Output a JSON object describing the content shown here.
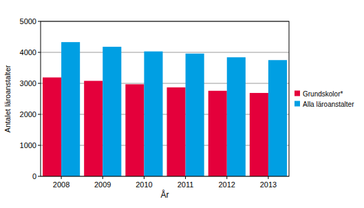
{
  "chart_data": {
    "type": "bar",
    "x_label": "År",
    "y_label": "Antalet läroanstalter",
    "categories": [
      "2008",
      "2009",
      "2010",
      "2011",
      "2012",
      "2013"
    ],
    "series": [
      {
        "name": "Grundskolor*",
        "color": "#e4003b",
        "values": [
          3190,
          3080,
          2970,
          2870,
          2760,
          2690
        ]
      },
      {
        "name": "Alla läroanstalter",
        "color": "#009fe3",
        "values": [
          4330,
          4180,
          4030,
          3960,
          3840,
          3750
        ]
      }
    ],
    "ylim": [
      0,
      5000
    ],
    "yticks": [
      0,
      1000,
      2000,
      3000,
      4000,
      5000
    ],
    "grid": true,
    "legend": "right"
  }
}
